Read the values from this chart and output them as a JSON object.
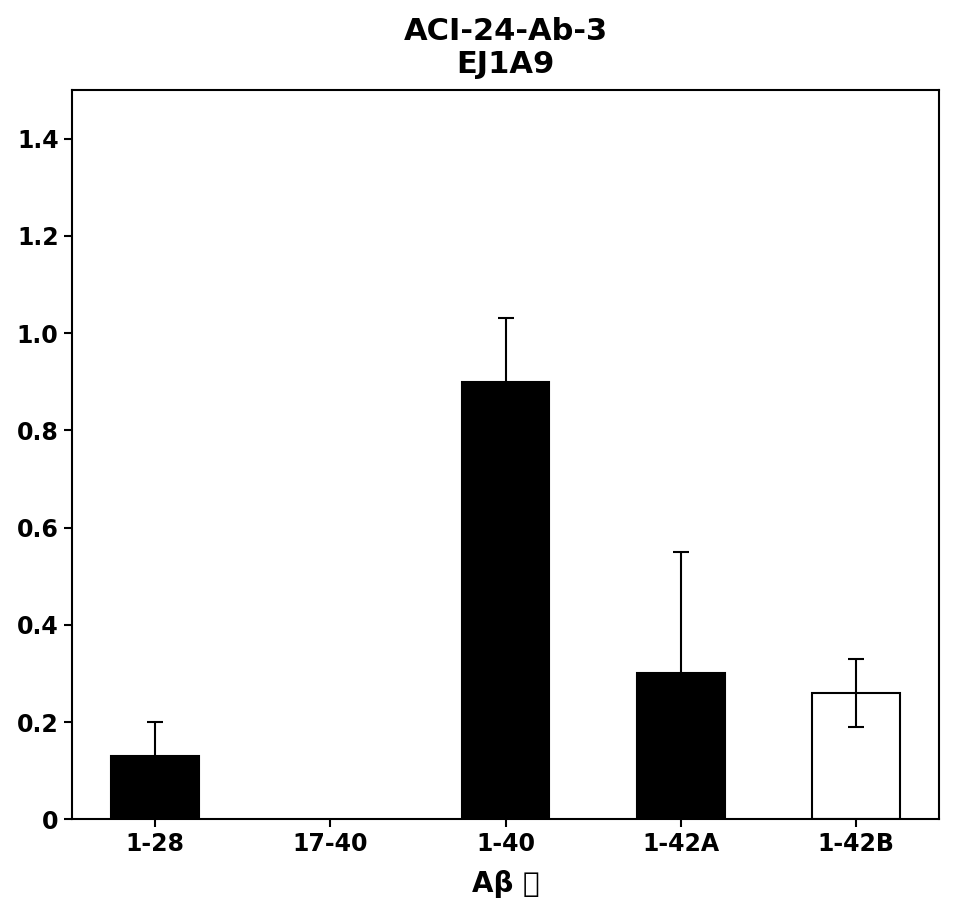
{
  "title_line1": "ACI-24-Ab-3",
  "title_line2": "EJ1A9",
  "categories": [
    "1-28",
    "17-40",
    "1-40",
    "1-42A",
    "1-42B"
  ],
  "values": [
    0.13,
    0.0,
    0.9,
    0.3,
    0.26
  ],
  "errors": [
    0.07,
    0.0,
    0.13,
    0.25,
    0.07
  ],
  "bar_colors": [
    "#000000",
    "#000000",
    "#000000",
    "#000000",
    "#ffffff"
  ],
  "bar_edgecolors": [
    "#000000",
    "#000000",
    "#000000",
    "#000000",
    "#000000"
  ],
  "xlabel": "Aβ 肽",
  "ylim": [
    0,
    1.5
  ],
  "yticks": [
    0,
    0.2,
    0.4,
    0.6,
    0.8,
    1.0,
    1.2,
    1.4
  ],
  "title_fontsize": 22,
  "xlabel_fontsize": 20,
  "tick_fontsize": 17,
  "bar_width": 0.5,
  "background_color": "#ffffff",
  "plot_background": "#ffffff",
  "capsize": 6,
  "elinewidth": 1.5,
  "capthick": 1.5
}
